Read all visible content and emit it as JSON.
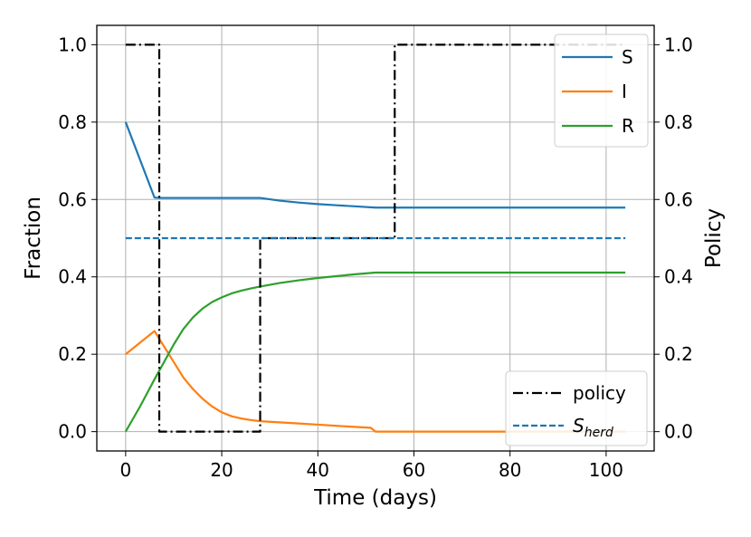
{
  "chart_data": {
    "type": "line",
    "xlabel": "Time (days)",
    "ylabel": "Fraction",
    "y2label": "Policy",
    "xlim": [
      -6,
      110
    ],
    "ylim": [
      -0.05,
      1.05
    ],
    "y2lim": [
      -0.05,
      1.05
    ],
    "x_ticks": [
      0,
      20,
      40,
      60,
      80,
      100
    ],
    "x_tick_labels": [
      "0",
      "20",
      "40",
      "60",
      "80",
      "100"
    ],
    "y_ticks": [
      0.0,
      0.2,
      0.4,
      0.6,
      0.8,
      1.0
    ],
    "y_tick_labels": [
      "0.0",
      "0.2",
      "0.4",
      "0.6",
      "0.8",
      "1.0"
    ],
    "y2_ticks": [
      0.0,
      0.2,
      0.4,
      0.6,
      0.8,
      1.0
    ],
    "y2_tick_labels": [
      "0.0",
      "0.2",
      "0.4",
      "0.6",
      "0.8",
      "1.0"
    ],
    "grid": true,
    "series": [
      {
        "name": "S",
        "axis": "left",
        "color": "#1f77b4",
        "style": "solid",
        "points": [
          [
            0,
            0.8
          ],
          [
            6,
            0.605
          ],
          [
            7,
            0.604
          ],
          [
            20,
            0.604
          ],
          [
            28,
            0.604
          ],
          [
            32,
            0.597
          ],
          [
            36,
            0.592
          ],
          [
            40,
            0.588
          ],
          [
            44,
            0.585
          ],
          [
            48,
            0.582
          ],
          [
            52,
            0.579
          ],
          [
            60,
            0.579
          ],
          [
            80,
            0.579
          ],
          [
            104,
            0.579
          ]
        ]
      },
      {
        "name": "I",
        "axis": "left",
        "color": "#ff7f0e",
        "style": "solid",
        "points": [
          [
            0,
            0.2
          ],
          [
            3,
            0.23
          ],
          [
            6,
            0.26
          ],
          [
            8,
            0.22
          ],
          [
            10,
            0.18
          ],
          [
            12,
            0.14
          ],
          [
            14,
            0.11
          ],
          [
            16,
            0.085
          ],
          [
            18,
            0.065
          ],
          [
            20,
            0.05
          ],
          [
            22,
            0.04
          ],
          [
            24,
            0.034
          ],
          [
            26,
            0.03
          ],
          [
            28,
            0.027
          ],
          [
            32,
            0.024
          ],
          [
            36,
            0.021
          ],
          [
            40,
            0.018
          ],
          [
            44,
            0.015
          ],
          [
            48,
            0.012
          ],
          [
            51,
            0.01
          ],
          [
            52,
            0.0
          ],
          [
            60,
            0.0
          ],
          [
            80,
            0.0
          ],
          [
            104,
            0.0
          ]
        ]
      },
      {
        "name": "R",
        "axis": "left",
        "color": "#2ca02c",
        "style": "solid",
        "points": [
          [
            0,
            0.0
          ],
          [
            3,
            0.065
          ],
          [
            6,
            0.135
          ],
          [
            8,
            0.18
          ],
          [
            10,
            0.225
          ],
          [
            12,
            0.265
          ],
          [
            14,
            0.295
          ],
          [
            16,
            0.318
          ],
          [
            18,
            0.335
          ],
          [
            20,
            0.347
          ],
          [
            22,
            0.357
          ],
          [
            24,
            0.364
          ],
          [
            26,
            0.37
          ],
          [
            28,
            0.375
          ],
          [
            32,
            0.384
          ],
          [
            36,
            0.391
          ],
          [
            40,
            0.397
          ],
          [
            44,
            0.402
          ],
          [
            48,
            0.407
          ],
          [
            52,
            0.411
          ],
          [
            60,
            0.411
          ],
          [
            80,
            0.411
          ],
          [
            104,
            0.411
          ]
        ]
      },
      {
        "name": "policy",
        "axis": "right",
        "color": "#000000",
        "style": "dashdot",
        "points": [
          [
            0,
            1.0
          ],
          [
            7,
            1.0
          ],
          [
            7,
            0.0
          ],
          [
            28,
            0.0
          ],
          [
            28,
            0.5
          ],
          [
            56,
            0.5
          ],
          [
            56,
            1.0
          ],
          [
            104,
            1.0
          ]
        ]
      },
      {
        "name": "S_herd",
        "axis": "left",
        "color": "#1f77b4",
        "style": "dashed",
        "points": [
          [
            0,
            0.5
          ],
          [
            104,
            0.5
          ]
        ]
      }
    ],
    "legends": [
      {
        "location": "upper right",
        "entries": [
          {
            "label": "S",
            "color": "#1f77b4",
            "style": "solid"
          },
          {
            "label": "I",
            "color": "#ff7f0e",
            "style": "solid"
          },
          {
            "label": "R",
            "color": "#2ca02c",
            "style": "solid"
          }
        ]
      },
      {
        "location": "lower right",
        "entries": [
          {
            "label": "policy",
            "color": "#000000",
            "style": "dashdot"
          },
          {
            "label_main": "S",
            "label_sub": "herd",
            "color": "#1f77b4",
            "style": "dashed"
          }
        ]
      }
    ]
  }
}
